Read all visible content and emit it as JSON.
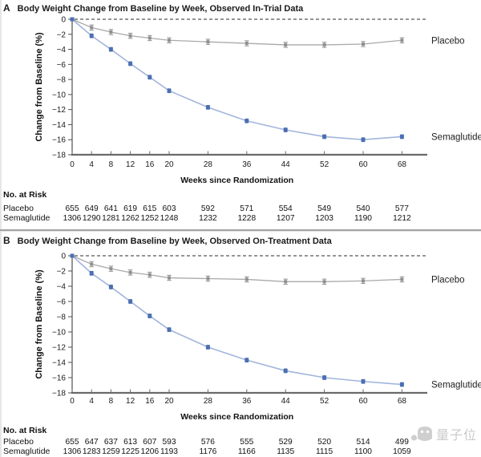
{
  "page": {
    "watermark_text": "量子位"
  },
  "chart_data": [
    {
      "panel": "A",
      "type": "line",
      "title": "Body Weight Change from Baseline by Week, Observed In-Trial Data",
      "xlabel": "Weeks since Randomization",
      "ylabel": "Change from Baseline (%)",
      "x": [
        0,
        4,
        8,
        12,
        16,
        20,
        28,
        36,
        44,
        52,
        60,
        68
      ],
      "ylim": [
        -18,
        0
      ],
      "yticks": [
        0,
        -2,
        -4,
        -6,
        -8,
        -10,
        -12,
        -14,
        -16,
        -18
      ],
      "grid": false,
      "legend_position": "right-of-line-ends",
      "series": [
        {
          "name": "Placebo",
          "values": [
            0,
            -1.1,
            -1.7,
            -2.2,
            -2.5,
            -2.8,
            -3.0,
            -3.2,
            -3.4,
            -3.4,
            -3.3,
            -2.8
          ],
          "line_color": "#aaaaaa",
          "marker_color": "#8f8f8f"
        },
        {
          "name": "Semaglutide",
          "values": [
            0,
            -2.2,
            -4.0,
            -5.9,
            -7.7,
            -9.5,
            -11.7,
            -13.5,
            -14.7,
            -15.6,
            -16.0,
            -15.6
          ],
          "line_color": "#a2b5dc",
          "marker_color": "#4c6fb2"
        }
      ],
      "no_at_risk": {
        "header": "No. at Risk",
        "rows": [
          {
            "label": "Placebo",
            "values": [
              655,
              649,
              641,
              619,
              615,
              603,
              592,
              571,
              554,
              549,
              540,
              577
            ]
          },
          {
            "label": "Semaglutide",
            "values": [
              1306,
              1290,
              1281,
              1262,
              1252,
              1248,
              1232,
              1228,
              1207,
              1203,
              1190,
              1212
            ]
          }
        ]
      }
    },
    {
      "panel": "B",
      "type": "line",
      "title": "Body Weight Change from Baseline by Week, Observed On-Treatment Data",
      "xlabel": "Weeks since Randomization",
      "ylabel": "Change from Baseline (%)",
      "x": [
        0,
        4,
        8,
        12,
        16,
        20,
        28,
        36,
        44,
        52,
        60,
        68
      ],
      "ylim": [
        -18,
        0
      ],
      "yticks": [
        0,
        -2,
        -4,
        -6,
        -8,
        -10,
        -12,
        -14,
        -16,
        -18
      ],
      "grid": false,
      "legend_position": "right-of-line-ends",
      "series": [
        {
          "name": "Placebo",
          "values": [
            0,
            -1.1,
            -1.7,
            -2.2,
            -2.5,
            -2.9,
            -3.0,
            -3.1,
            -3.4,
            -3.4,
            -3.3,
            -3.1
          ],
          "line_color": "#aaaaaa",
          "marker_color": "#8f8f8f"
        },
        {
          "name": "Semaglutide",
          "values": [
            0,
            -2.3,
            -4.1,
            -6.0,
            -7.9,
            -9.7,
            -12.0,
            -13.7,
            -15.1,
            -16.0,
            -16.5,
            -16.9
          ],
          "line_color": "#a2b5dc",
          "marker_color": "#4c6fb2"
        }
      ],
      "no_at_risk": {
        "header": "No. at Risk",
        "rows": [
          {
            "label": "Placebo",
            "values": [
              655,
              647,
              637,
              613,
              607,
              593,
              576,
              555,
              529,
              520,
              514,
              499
            ]
          },
          {
            "label": "Semaglutide",
            "values": [
              1306,
              1283,
              1259,
              1225,
              1206,
              1193,
              1176,
              1166,
              1135,
              1115,
              1100,
              1059
            ]
          }
        ]
      }
    }
  ]
}
